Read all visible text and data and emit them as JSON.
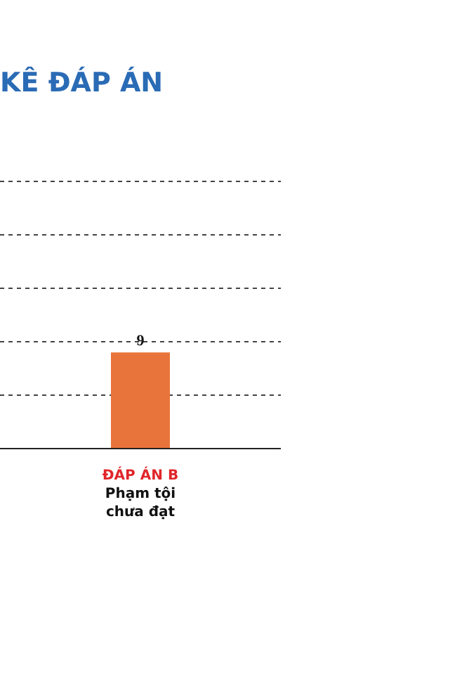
{
  "chart_data": {
    "type": "bar",
    "title": "KÊ ĐÁP ÁN",
    "categories": [
      "ĐÁP ÁN B\nPhạm tội\nchưa đạt"
    ],
    "values": [
      9
    ],
    "color": "#e8743b",
    "ylim": [
      0,
      25
    ],
    "yticks": [
      {
        "value": 0,
        "label": null
      },
      {
        "value": 5,
        "label": null
      },
      {
        "value": 10,
        "label": null
      },
      {
        "value": 15,
        "label": null
      },
      {
        "value": 20,
        "label": null
      },
      {
        "value": 25,
        "label": null
      }
    ],
    "tick_labels": "x",
    "grid": "y",
    "data_labels": true,
    "legend": false
  }
}
